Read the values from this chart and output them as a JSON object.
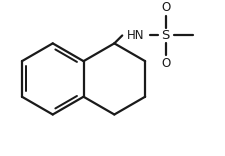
{
  "background_color": "#ffffff",
  "line_color": "#1a1a1a",
  "line_width": 1.6,
  "text_color": "#1a1a1a",
  "font_size_hn": 8.5,
  "font_size_s": 9.5,
  "font_size_o": 8.5,
  "figsize": [
    2.26,
    1.56
  ],
  "dpi": 100,
  "xlim": [
    0,
    226
  ],
  "ylim": [
    0,
    156
  ]
}
